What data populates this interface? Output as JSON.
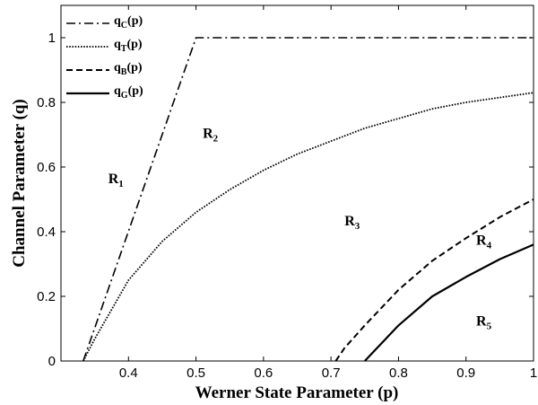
{
  "chart_data": {
    "type": "line",
    "title": "",
    "xlabel": "Werner State Parameter (p)",
    "ylabel": "Channel Parameter (q)",
    "xlim": [
      0.3,
      1.0
    ],
    "ylim": [
      0,
      1.1
    ],
    "xticks": [
      "0.4",
      "0.5",
      "0.6",
      "0.7",
      "0.8",
      "0.9",
      "1"
    ],
    "yticks": [
      "0",
      "0.2",
      "0.4",
      "0.6",
      "0.8",
      "1"
    ],
    "grid": false,
    "legend_position": "top-left",
    "series": [
      {
        "name": "q_C(p)",
        "legend_main": "q",
        "legend_sub": "C",
        "legend_tail": "(p)",
        "style": "dashdot",
        "x": [
          0.333,
          0.5,
          1.0
        ],
        "y": [
          0.0,
          1.0,
          1.0
        ]
      },
      {
        "name": "q_T(p)",
        "legend_main": "q",
        "legend_sub": "T",
        "legend_tail": "(p)",
        "style": "dotted",
        "x": [
          0.333,
          0.35,
          0.4,
          0.45,
          0.5,
          0.55,
          0.6,
          0.65,
          0.7,
          0.75,
          0.8,
          0.85,
          0.9,
          0.95,
          1.0
        ],
        "y": [
          0.0,
          0.068,
          0.25,
          0.37,
          0.46,
          0.53,
          0.59,
          0.64,
          0.68,
          0.72,
          0.75,
          0.78,
          0.8,
          0.815,
          0.83
        ]
      },
      {
        "name": "q_B(p)",
        "legend_main": "q",
        "legend_sub": "B",
        "legend_tail": "(p)",
        "style": "dashed",
        "x": [
          0.707,
          0.72,
          0.75,
          0.8,
          0.85,
          0.9,
          0.95,
          1.0
        ],
        "y": [
          0.0,
          0.04,
          0.11,
          0.22,
          0.31,
          0.38,
          0.445,
          0.5
        ]
      },
      {
        "name": "q_G(p)",
        "legend_main": "q",
        "legend_sub": "G",
        "legend_tail": "(p)",
        "style": "solid",
        "x": [
          0.75,
          0.8,
          0.85,
          0.9,
          0.95,
          1.0
        ],
        "y": [
          0.0,
          0.11,
          0.2,
          0.26,
          0.315,
          0.36
        ]
      }
    ],
    "regions": [
      {
        "main": "R",
        "sub": "1",
        "x": 0.37,
        "y": 0.55
      },
      {
        "main": "R",
        "sub": "2",
        "x": 0.51,
        "y": 0.69
      },
      {
        "main": "R",
        "sub": "3",
        "x": 0.72,
        "y": 0.42
      },
      {
        "main": "R",
        "sub": "4",
        "x": 0.915,
        "y": 0.36
      },
      {
        "main": "R",
        "sub": "5",
        "x": 0.915,
        "y": 0.11
      }
    ]
  }
}
